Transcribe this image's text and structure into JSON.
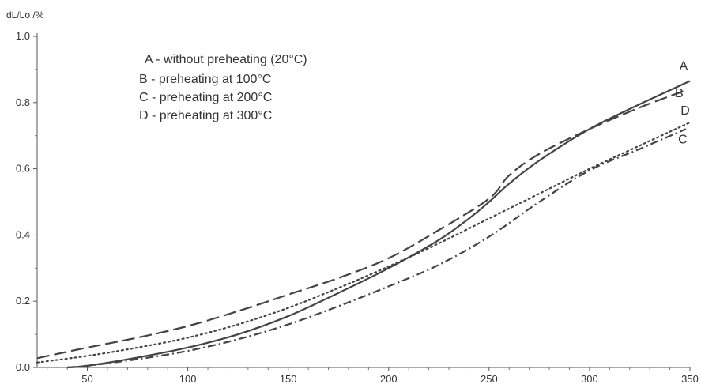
{
  "chart_data": {
    "type": "line",
    "title": "",
    "xlabel": "",
    "ylabel": "dL/Lo /%",
    "xlim": [
      25,
      350
    ],
    "ylim": [
      0,
      1.0
    ],
    "x_ticks": [
      50,
      100,
      150,
      200,
      250,
      300,
      350
    ],
    "y_ticks": [
      0.0,
      0.2,
      0.4,
      0.6,
      0.8,
      1.0
    ],
    "y_tick_labels": [
      "0.0",
      "0.2",
      "0.4",
      "0.6",
      "0.8",
      "1.0"
    ],
    "grid": false,
    "legend": {
      "placement": "top-left",
      "entries": [
        "A - without preheating (20°C)",
        "B - preheating at 100°C",
        "C - preheating at 200°C",
        "D - preheating at 300°C"
      ]
    },
    "series": [
      {
        "name": "A",
        "dash": "solid",
        "color": "#444444",
        "x": [
          40,
          50,
          75,
          100,
          125,
          150,
          175,
          200,
          225,
          240,
          250,
          260,
          275,
          300,
          325,
          350
        ],
        "y": [
          0.0,
          0.005,
          0.03,
          0.06,
          0.1,
          0.155,
          0.225,
          0.3,
          0.385,
          0.45,
          0.5,
          0.555,
          0.625,
          0.72,
          0.795,
          0.865
        ]
      },
      {
        "name": "B",
        "dash": "long-dash",
        "color": "#444444",
        "x": [
          25,
          50,
          75,
          100,
          125,
          150,
          175,
          200,
          225,
          250,
          260,
          275,
          300,
          325,
          347
        ],
        "y": [
          0.028,
          0.06,
          0.09,
          0.125,
          0.17,
          0.22,
          0.27,
          0.33,
          0.415,
          0.51,
          0.58,
          0.645,
          0.72,
          0.785,
          0.835
        ]
      },
      {
        "name": "C",
        "dash": "dash-dot",
        "color": "#444444",
        "x": [
          40,
          50,
          75,
          100,
          125,
          150,
          175,
          200,
          225,
          250,
          275,
          300,
          325,
          348
        ],
        "y": [
          0.0,
          0.005,
          0.025,
          0.05,
          0.085,
          0.13,
          0.185,
          0.245,
          0.31,
          0.395,
          0.5,
          0.595,
          0.66,
          0.72
        ]
      },
      {
        "name": "D",
        "dash": "dotted",
        "color": "#444444",
        "x": [
          25,
          50,
          75,
          100,
          125,
          150,
          175,
          200,
          225,
          250,
          275,
          300,
          325,
          350
        ],
        "y": [
          0.015,
          0.035,
          0.06,
          0.09,
          0.13,
          0.18,
          0.24,
          0.305,
          0.375,
          0.45,
          0.525,
          0.6,
          0.67,
          0.74
        ]
      }
    ]
  }
}
